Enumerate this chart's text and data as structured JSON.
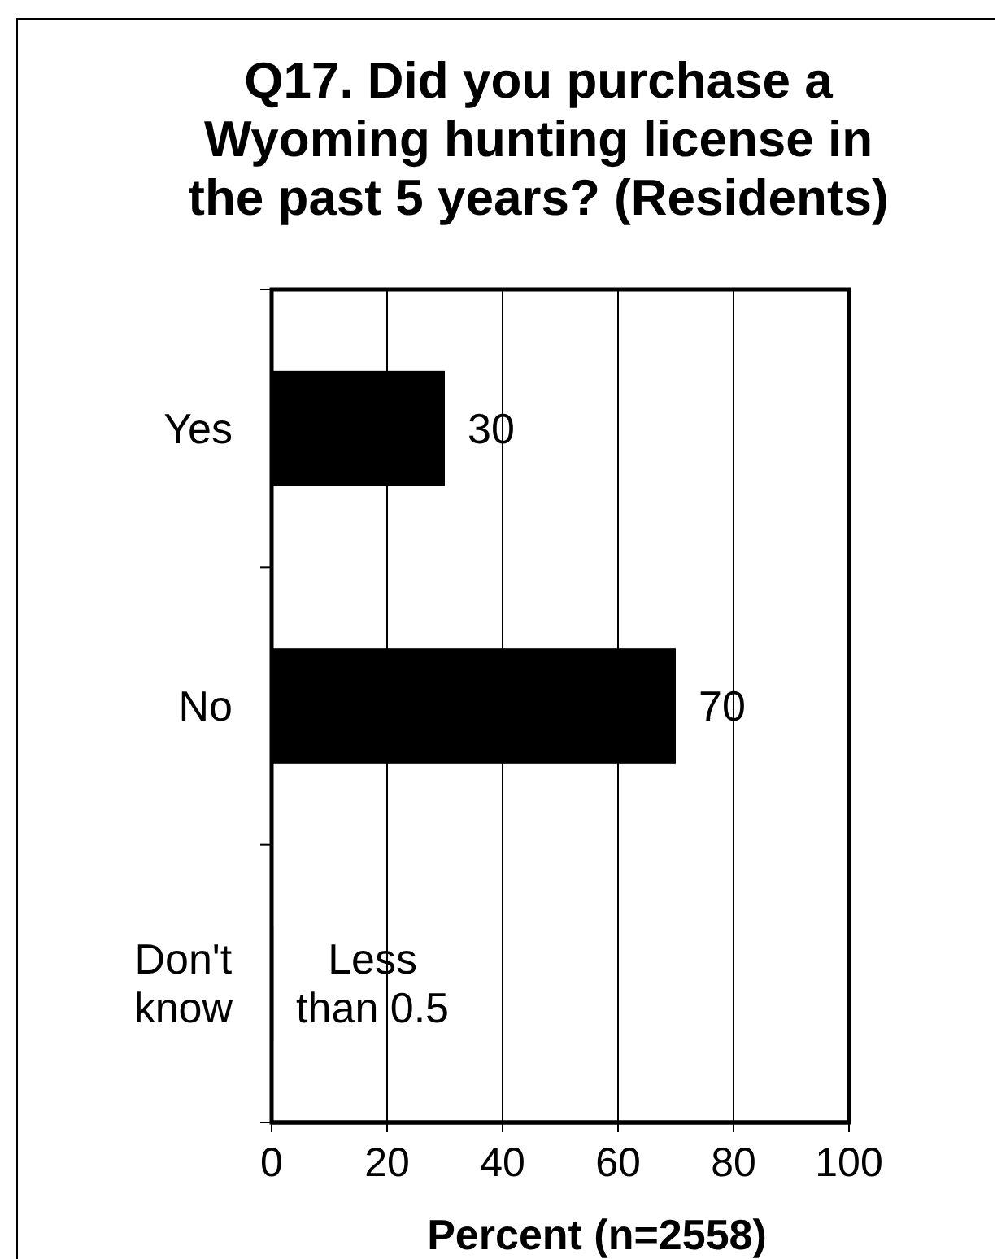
{
  "chart_data": {
    "type": "bar",
    "orientation": "horizontal",
    "title": "Q17. Did you purchase a Wyoming hunting license in the past 5 years? (Residents)",
    "xlabel": "Percent (n=2558)",
    "categories": [
      "Yes",
      "No",
      "Don't know"
    ],
    "values": [
      30,
      70,
      0.3
    ],
    "value_labels": [
      "30",
      "70",
      "Less than 0.5"
    ],
    "color": "#000000",
    "xlim": [
      0,
      100
    ],
    "xticks": [
      0,
      20,
      40,
      60,
      80,
      100
    ],
    "grid": "x"
  }
}
